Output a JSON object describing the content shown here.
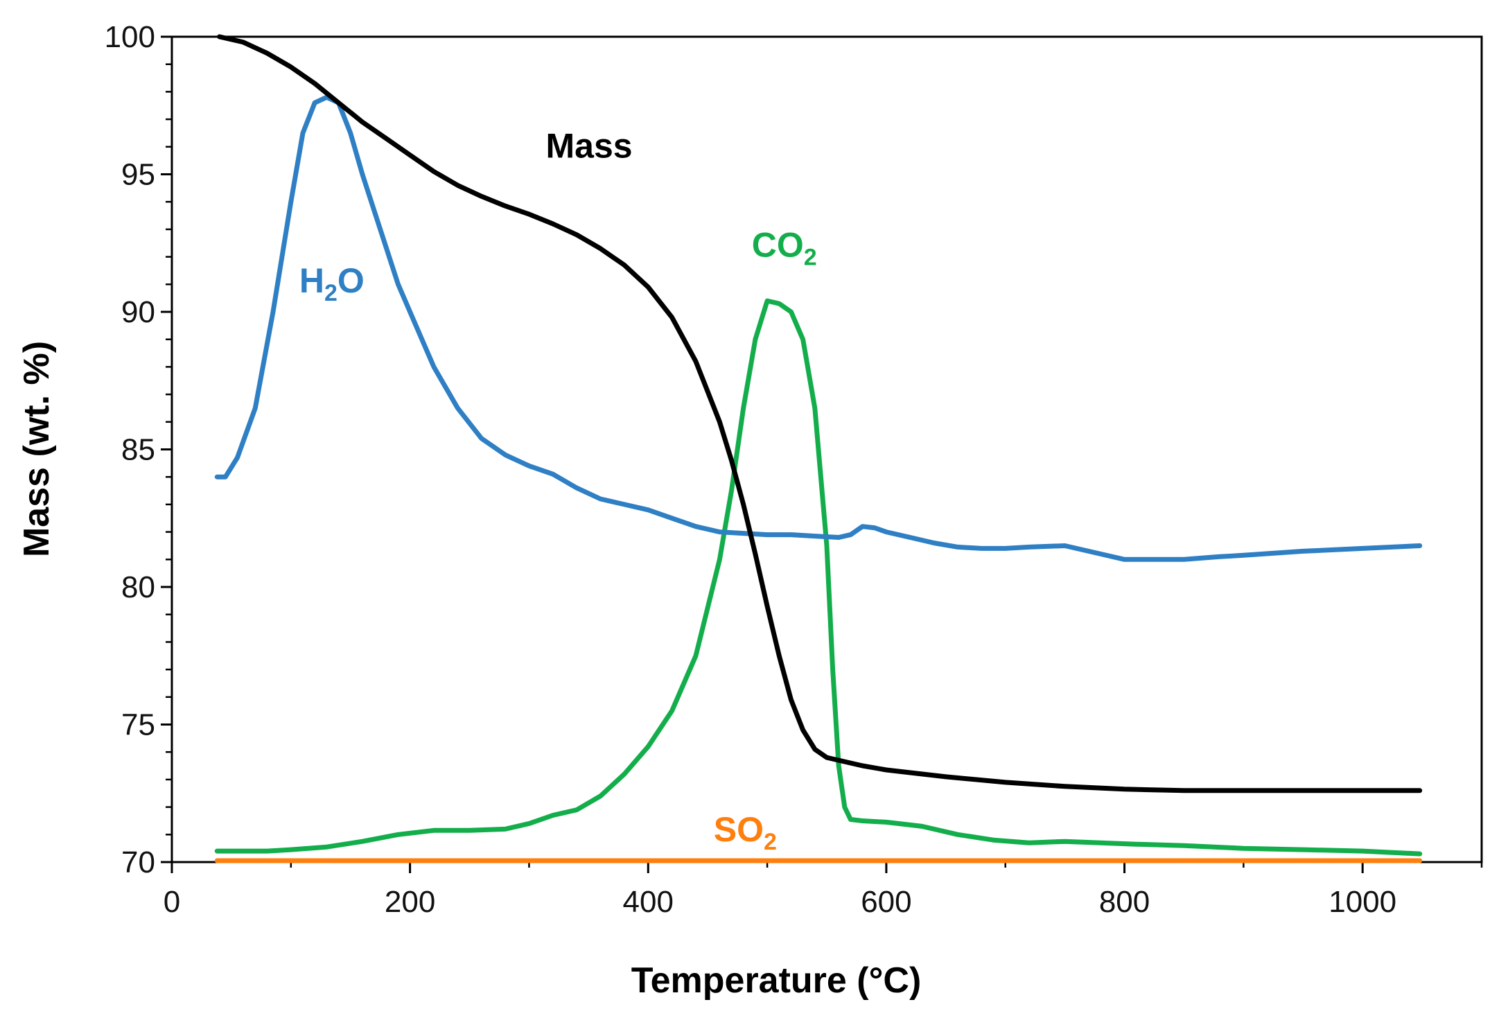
{
  "chart_data": {
    "type": "line",
    "xlabel": "Temperature (°C)",
    "ylabel": "Mass (wt. %)",
    "xlim": [
      0,
      1100
    ],
    "ylim": [
      70,
      100
    ],
    "x_ticks": [
      0,
      200,
      400,
      600,
      800,
      1000
    ],
    "y_ticks": [
      70,
      75,
      80,
      85,
      90,
      95,
      100
    ],
    "x_minor_step": 100,
    "y_minor_step": 1,
    "grid": false,
    "series": [
      {
        "name": "Mass",
        "label_main": "Mass",
        "label_sub": "",
        "label_tail": "",
        "color": "#000000",
        "label_pos": [
          314,
          95.6
        ],
        "x": [
          40,
          60,
          80,
          100,
          120,
          140,
          160,
          180,
          200,
          220,
          240,
          260,
          280,
          300,
          320,
          340,
          360,
          380,
          400,
          420,
          440,
          460,
          470,
          480,
          490,
          500,
          510,
          520,
          530,
          540,
          550,
          560,
          580,
          600,
          650,
          700,
          750,
          800,
          850,
          900,
          950,
          1000,
          1048
        ],
        "values": [
          100,
          99.8,
          99.4,
          98.9,
          98.3,
          97.6,
          96.9,
          96.3,
          95.7,
          95.1,
          94.6,
          94.2,
          93.85,
          93.55,
          93.2,
          92.8,
          92.3,
          91.7,
          90.9,
          89.8,
          88.2,
          86.0,
          84.6,
          83.0,
          81.2,
          79.3,
          77.5,
          75.9,
          74.8,
          74.1,
          73.8,
          73.7,
          73.5,
          73.35,
          73.1,
          72.9,
          72.75,
          72.65,
          72.6,
          72.6,
          72.6,
          72.6,
          72.6
        ]
      },
      {
        "name": "H2O",
        "label_main": "H",
        "label_sub": "2",
        "label_tail": "O",
        "color": "#2E7FC4",
        "label_pos": [
          107,
          90.7
        ],
        "x": [
          38,
          45,
          55,
          70,
          85,
          100,
          110,
          120,
          130,
          140,
          150,
          160,
          175,
          190,
          205,
          220,
          240,
          260,
          280,
          300,
          320,
          340,
          360,
          380,
          400,
          420,
          440,
          460,
          480,
          500,
          520,
          540,
          560,
          570,
          580,
          590,
          600,
          620,
          640,
          660,
          680,
          700,
          720,
          750,
          780,
          800,
          820,
          850,
          880,
          900,
          950,
          1000,
          1048
        ],
        "values": [
          84.0,
          84.0,
          84.7,
          86.5,
          90.0,
          94.0,
          96.5,
          97.6,
          97.8,
          97.6,
          96.5,
          95.0,
          93.0,
          91.0,
          89.5,
          88.0,
          86.5,
          85.4,
          84.8,
          84.4,
          84.1,
          83.6,
          83.2,
          83.0,
          82.8,
          82.5,
          82.2,
          82.0,
          81.95,
          81.9,
          81.9,
          81.85,
          81.8,
          81.9,
          82.2,
          82.15,
          82.0,
          81.8,
          81.6,
          81.45,
          81.4,
          81.4,
          81.45,
          81.5,
          81.2,
          81.0,
          81.0,
          81.0,
          81.1,
          81.15,
          81.3,
          81.4,
          81.5
        ]
      },
      {
        "name": "CO2",
        "label_main": "CO",
        "label_sub": "2",
        "label_tail": "",
        "color": "#13AE4B",
        "label_pos": [
          487,
          92.0
        ],
        "x": [
          38,
          60,
          80,
          100,
          130,
          160,
          190,
          220,
          250,
          280,
          300,
          320,
          340,
          360,
          380,
          400,
          420,
          440,
          460,
          470,
          480,
          490,
          500,
          510,
          520,
          530,
          540,
          550,
          555,
          560,
          565,
          570,
          580,
          600,
          630,
          660,
          690,
          720,
          750,
          780,
          810,
          850,
          900,
          950,
          1000,
          1048
        ],
        "values": [
          70.4,
          70.4,
          70.4,
          70.45,
          70.55,
          70.75,
          71.0,
          71.15,
          71.15,
          71.2,
          71.4,
          71.7,
          71.9,
          72.4,
          73.2,
          74.2,
          75.5,
          77.5,
          81.0,
          83.5,
          86.5,
          89.0,
          90.4,
          90.3,
          90.0,
          89.0,
          86.5,
          81.5,
          77.0,
          73.5,
          72.0,
          71.55,
          71.5,
          71.45,
          71.3,
          71.0,
          70.8,
          70.7,
          70.75,
          70.7,
          70.65,
          70.6,
          70.5,
          70.45,
          70.4,
          70.3
        ]
      },
      {
        "name": "SO2",
        "label_main": "SO",
        "label_sub": "2",
        "label_tail": "",
        "color": "#FF7F0E",
        "label_pos": [
          455,
          70.75
        ],
        "x": [
          38,
          1048
        ],
        "values": [
          70.05,
          70.05
        ]
      }
    ]
  }
}
